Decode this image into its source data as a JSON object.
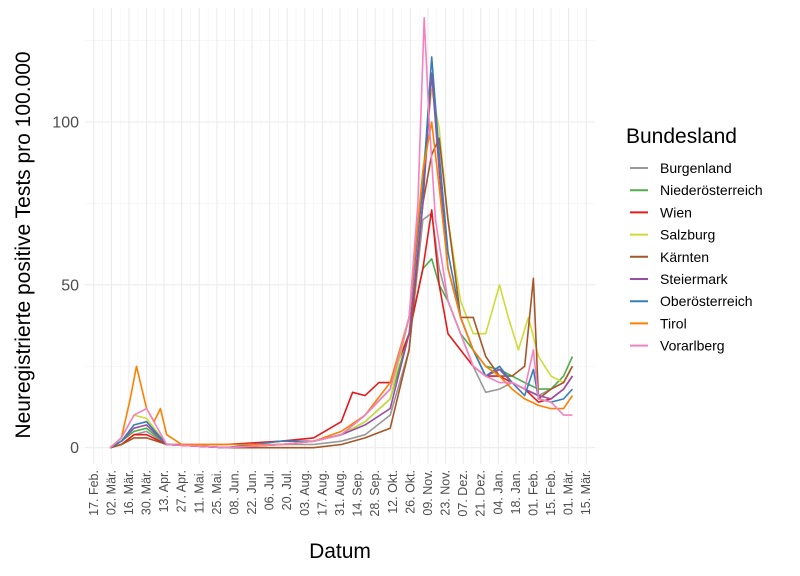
{
  "chart_data": {
    "type": "line",
    "xlabel": "Datum",
    "ylabel": "Neuregistrierte positive Tests pro 100.000",
    "ylim": [
      -5,
      135
    ],
    "yticks": [
      0,
      50,
      100
    ],
    "x_tick_labels": [
      "17. Feb.",
      "02. Mär.",
      "16. Mär.",
      "30. Mär.",
      "13. Apr.",
      "27. Apr.",
      "11. Mai.",
      "25. Mai.",
      "08. Jun.",
      "22. Jun.",
      "06. Jul.",
      "20. Jul.",
      "03. Aug.",
      "17. Aug.",
      "31. Aug.",
      "14. Sep.",
      "28. Sep.",
      "12. Okt.",
      "26. Okt.",
      "09. Nov.",
      "23. Nov.",
      "07. Dez.",
      "21. Dez.",
      "04. Jan.",
      "18. Jan.",
      "01. Feb.",
      "15. Feb.",
      "01. Mär.",
      "15. Mär."
    ],
    "x_tick_dates": [
      "2020-02-17",
      "2020-03-02",
      "2020-03-16",
      "2020-03-30",
      "2020-04-13",
      "2020-04-27",
      "2020-05-11",
      "2020-05-25",
      "2020-06-08",
      "2020-06-22",
      "2020-07-06",
      "2020-07-20",
      "2020-08-03",
      "2020-08-17",
      "2020-08-31",
      "2020-09-14",
      "2020-09-28",
      "2020-10-12",
      "2020-10-26",
      "2020-11-09",
      "2020-11-23",
      "2020-12-07",
      "2020-12-21",
      "2021-01-04",
      "2021-01-18",
      "2021-02-01",
      "2021-02-15",
      "2021-03-01",
      "2021-03-15"
    ],
    "xlim": [
      "2020-02-10",
      "2021-03-22"
    ],
    "grid": true,
    "legend": {
      "title": "Bundesland",
      "position": "right"
    },
    "series": [
      {
        "name": "Burgenland",
        "color": "#999999",
        "x": [
          "2020-03-01",
          "2020-03-10",
          "2020-03-20",
          "2020-03-30",
          "2020-04-15",
          "2020-06-01",
          "2020-07-15",
          "2020-08-10",
          "2020-09-01",
          "2020-09-20",
          "2020-10-10",
          "2020-10-25",
          "2020-11-05",
          "2020-11-12",
          "2020-11-18",
          "2020-11-25",
          "2020-12-05",
          "2020-12-15",
          "2020-12-25",
          "2021-01-05",
          "2021-01-15",
          "2021-01-25",
          "2021-02-05",
          "2021-02-15",
          "2021-02-25",
          "2021-03-04"
        ],
        "y": [
          0,
          1,
          4,
          5,
          1,
          0,
          1,
          1,
          2,
          4,
          10,
          30,
          70,
          72,
          55,
          45,
          35,
          25,
          17,
          18,
          20,
          18,
          16,
          18,
          20,
          25
        ]
      },
      {
        "name": "Niederösterreich",
        "color": "#4DAF4A",
        "x": [
          "2020-03-01",
          "2020-03-10",
          "2020-03-20",
          "2020-03-30",
          "2020-04-15",
          "2020-06-01",
          "2020-07-15",
          "2020-08-10",
          "2020-09-01",
          "2020-09-20",
          "2020-10-10",
          "2020-10-25",
          "2020-11-05",
          "2020-11-12",
          "2020-11-18",
          "2020-11-25",
          "2020-12-05",
          "2020-12-15",
          "2020-12-25",
          "2021-01-05",
          "2021-01-15",
          "2021-01-25",
          "2021-02-05",
          "2021-02-15",
          "2021-02-25",
          "2021-03-04"
        ],
        "y": [
          0,
          2,
          5,
          6,
          1,
          0,
          1,
          2,
          4,
          8,
          15,
          35,
          55,
          58,
          50,
          45,
          35,
          30,
          25,
          24,
          22,
          20,
          18,
          18,
          22,
          28
        ]
      },
      {
        "name": "Wien",
        "color": "#E41A1C",
        "x": [
          "2020-03-01",
          "2020-03-10",
          "2020-03-20",
          "2020-03-30",
          "2020-04-15",
          "2020-06-01",
          "2020-07-15",
          "2020-08-10",
          "2020-09-01",
          "2020-09-10",
          "2020-09-20",
          "2020-10-01",
          "2020-10-10",
          "2020-10-25",
          "2020-11-05",
          "2020-11-12",
          "2020-11-18",
          "2020-11-25",
          "2020-12-05",
          "2020-12-15",
          "2020-12-25",
          "2021-01-05",
          "2021-01-15",
          "2021-01-25",
          "2021-02-05",
          "2021-02-15",
          "2021-02-25",
          "2021-03-04"
        ],
        "y": [
          0,
          1,
          4,
          4,
          1,
          1,
          2,
          3,
          8,
          17,
          16,
          20,
          20,
          35,
          55,
          73,
          50,
          35,
          30,
          25,
          22,
          22,
          20,
          18,
          14,
          15,
          18,
          22
        ]
      },
      {
        "name": "Salzburg",
        "color": "#CDDC39",
        "x": [
          "2020-03-01",
          "2020-03-10",
          "2020-03-20",
          "2020-03-30",
          "2020-04-15",
          "2020-06-01",
          "2020-07-15",
          "2020-08-10",
          "2020-09-01",
          "2020-09-20",
          "2020-10-10",
          "2020-10-25",
          "2020-11-05",
          "2020-11-12",
          "2020-11-18",
          "2020-11-25",
          "2020-12-05",
          "2020-12-15",
          "2020-12-25",
          "2021-01-05",
          "2021-01-12",
          "2021-01-20",
          "2021-01-28",
          "2021-02-05",
          "2021-02-15",
          "2021-02-25",
          "2021-03-04"
        ],
        "y": [
          0,
          3,
          10,
          9,
          1,
          0,
          1,
          2,
          4,
          8,
          15,
          40,
          85,
          110,
          98,
          70,
          45,
          35,
          35,
          50,
          40,
          30,
          40,
          28,
          22,
          20,
          25
        ]
      },
      {
        "name": "Kärnten",
        "color": "#A65628",
        "x": [
          "2020-03-01",
          "2020-03-10",
          "2020-03-20",
          "2020-03-30",
          "2020-04-15",
          "2020-06-01",
          "2020-07-15",
          "2020-08-10",
          "2020-09-01",
          "2020-09-20",
          "2020-10-10",
          "2020-10-25",
          "2020-11-05",
          "2020-11-12",
          "2020-11-18",
          "2020-11-25",
          "2020-12-05",
          "2020-12-15",
          "2020-12-25",
          "2021-01-05",
          "2021-01-15",
          "2021-01-25",
          "2021-02-01",
          "2021-02-05",
          "2021-02-15",
          "2021-02-25",
          "2021-03-04"
        ],
        "y": [
          0,
          1,
          3,
          3,
          1,
          0,
          0,
          0,
          1,
          3,
          6,
          30,
          75,
          90,
          95,
          70,
          40,
          40,
          28,
          22,
          22,
          25,
          52,
          15,
          18,
          20,
          25
        ]
      },
      {
        "name": "Steiermark",
        "color": "#984EA3",
        "x": [
          "2020-03-01",
          "2020-03-10",
          "2020-03-20",
          "2020-03-30",
          "2020-04-15",
          "2020-06-01",
          "2020-07-15",
          "2020-08-10",
          "2020-09-01",
          "2020-09-20",
          "2020-10-10",
          "2020-10-25",
          "2020-11-05",
          "2020-11-12",
          "2020-11-18",
          "2020-11-25",
          "2020-12-05",
          "2020-12-15",
          "2020-12-25",
          "2021-01-05",
          "2021-01-15",
          "2021-01-25",
          "2021-02-05",
          "2021-02-15",
          "2021-02-25",
          "2021-03-04"
        ],
        "y": [
          0,
          2,
          6,
          7,
          1,
          0,
          1,
          2,
          4,
          7,
          12,
          35,
          75,
          115,
          85,
          55,
          40,
          30,
          22,
          24,
          20,
          18,
          16,
          15,
          18,
          22
        ]
      },
      {
        "name": "Oberösterreich",
        "color": "#377EB8",
        "x": [
          "2020-03-01",
          "2020-03-10",
          "2020-03-20",
          "2020-03-30",
          "2020-04-15",
          "2020-06-01",
          "2020-07-15",
          "2020-08-10",
          "2020-09-01",
          "2020-09-20",
          "2020-10-10",
          "2020-10-25",
          "2020-11-05",
          "2020-11-12",
          "2020-11-18",
          "2020-11-25",
          "2020-12-05",
          "2020-12-15",
          "2020-12-25",
          "2021-01-05",
          "2021-01-15",
          "2021-01-25",
          "2021-02-01",
          "2021-02-05",
          "2021-02-15",
          "2021-02-25",
          "2021-03-04"
        ],
        "y": [
          0,
          2,
          7,
          8,
          1,
          0,
          2,
          2,
          4,
          10,
          18,
          40,
          80,
          120,
          90,
          60,
          40,
          30,
          22,
          25,
          20,
          16,
          24,
          15,
          14,
          15,
          18
        ]
      },
      {
        "name": "Tirol",
        "color": "#FF7F00",
        "x": [
          "2020-03-01",
          "2020-03-10",
          "2020-03-17",
          "2020-03-22",
          "2020-03-30",
          "2020-04-05",
          "2020-04-10",
          "2020-04-15",
          "2020-04-27",
          "2020-06-01",
          "2020-07-15",
          "2020-08-10",
          "2020-09-01",
          "2020-09-20",
          "2020-10-10",
          "2020-10-25",
          "2020-11-05",
          "2020-11-12",
          "2020-11-18",
          "2020-11-25",
          "2020-12-05",
          "2020-12-15",
          "2020-12-25",
          "2021-01-05",
          "2021-01-15",
          "2021-01-25",
          "2021-02-05",
          "2021-02-15",
          "2021-02-25",
          "2021-03-04"
        ],
        "y": [
          0,
          3,
          15,
          25,
          12,
          8,
          12,
          4,
          1,
          1,
          1,
          2,
          5,
          10,
          20,
          40,
          85,
          100,
          80,
          55,
          40,
          30,
          25,
          22,
          18,
          15,
          13,
          12,
          12,
          16
        ]
      },
      {
        "name": "Vorarlberg",
        "color": "#F781BF",
        "x": [
          "2020-03-01",
          "2020-03-10",
          "2020-03-20",
          "2020-03-30",
          "2020-04-15",
          "2020-06-01",
          "2020-07-15",
          "2020-08-10",
          "2020-09-01",
          "2020-09-20",
          "2020-10-10",
          "2020-10-25",
          "2020-11-01",
          "2020-11-06",
          "2020-11-10",
          "2020-11-15",
          "2020-11-25",
          "2020-12-05",
          "2020-12-15",
          "2020-12-25",
          "2021-01-05",
          "2021-01-15",
          "2021-01-25",
          "2021-02-01",
          "2021-02-05",
          "2021-02-15",
          "2021-02-25",
          "2021-03-04"
        ],
        "y": [
          0,
          3,
          10,
          12,
          1,
          0,
          1,
          2,
          4,
          10,
          18,
          40,
          75,
          132,
          100,
          70,
          45,
          35,
          25,
          22,
          20,
          20,
          18,
          30,
          15,
          14,
          10,
          10
        ]
      }
    ]
  }
}
